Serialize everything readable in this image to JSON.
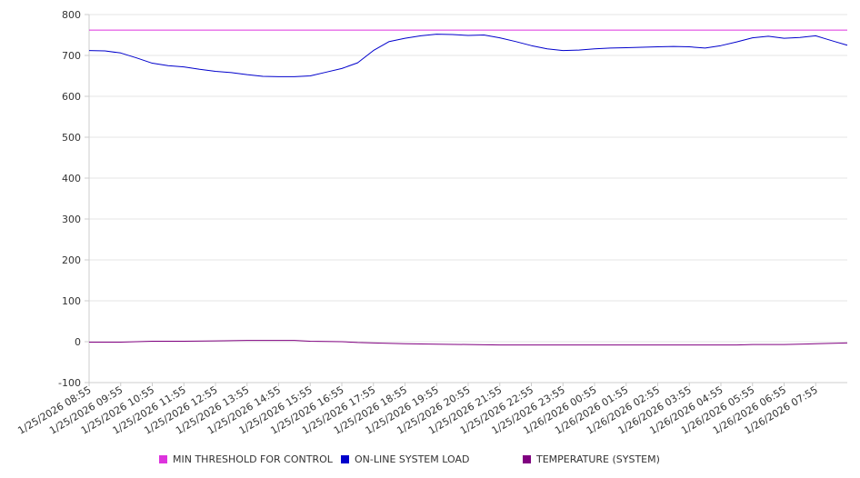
{
  "chart_data": {
    "type": "line",
    "title": "",
    "xlabel": "",
    "ylabel": "",
    "ylim": [
      -100,
      800
    ],
    "y_ticks": [
      -100,
      0,
      100,
      200,
      300,
      400,
      500,
      600,
      700,
      800
    ],
    "y_tick_labels": [
      "-100",
      "0",
      "100",
      "200",
      "300",
      "400",
      "500",
      "600",
      "700",
      "800"
    ],
    "x_tick_labels": [
      "1/25/2026 08:55",
      "1/25/2026 09:55",
      "1/25/2026 10:55",
      "1/25/2026 11:55",
      "1/25/2026 12:55",
      "1/25/2026 13:55",
      "1/25/2026 14:55",
      "1/25/2026 15:55",
      "1/25/2026 16:55",
      "1/25/2026 17:55",
      "1/25/2026 18:55",
      "1/25/2026 19:55",
      "1/25/2026 20:55",
      "1/25/2026 21:55",
      "1/25/2026 22:55",
      "1/25/2026 23:55",
      "1/26/2026 00:55",
      "1/26/2026 01:55",
      "1/26/2026 02:55",
      "1/26/2026 03:55",
      "1/26/2026 04:55",
      "1/26/2026 05:55",
      "1/26/2026 06:55",
      "1/26/2026 07:55"
    ],
    "x_range_hours": [
      0,
      24
    ],
    "grid": true,
    "legend_position": "bottom",
    "series": [
      {
        "name": "MIN THRESHOLD FOR CONTROL",
        "color": "#dd33dd",
        "points": [
          [
            0,
            762
          ],
          [
            24,
            762
          ]
        ]
      },
      {
        "name": "ON-LINE SYSTEM LOAD",
        "color": "#0000cc",
        "points": [
          [
            0,
            712
          ],
          [
            0.5,
            711
          ],
          [
            1,
            706
          ],
          [
            1.5,
            694
          ],
          [
            2,
            681
          ],
          [
            2.5,
            675
          ],
          [
            3,
            672
          ],
          [
            3.5,
            666
          ],
          [
            4,
            661
          ],
          [
            4.5,
            658
          ],
          [
            5,
            653
          ],
          [
            5.5,
            649
          ],
          [
            6,
            648
          ],
          [
            6.5,
            648
          ],
          [
            7,
            650
          ],
          [
            7.5,
            659
          ],
          [
            8,
            668
          ],
          [
            8.5,
            682
          ],
          [
            9,
            712
          ],
          [
            9.5,
            734
          ],
          [
            10,
            742
          ],
          [
            10.5,
            748
          ],
          [
            11,
            752
          ],
          [
            11.5,
            751
          ],
          [
            12,
            749
          ],
          [
            12.5,
            750
          ],
          [
            13,
            743
          ],
          [
            13.5,
            734
          ],
          [
            14,
            724
          ],
          [
            14.5,
            716
          ],
          [
            15,
            712
          ],
          [
            15.5,
            713
          ],
          [
            16,
            716
          ],
          [
            16.5,
            718
          ],
          [
            17,
            719
          ],
          [
            17.5,
            720
          ],
          [
            18,
            721
          ],
          [
            18.5,
            722
          ],
          [
            19,
            721
          ],
          [
            19.5,
            718
          ],
          [
            20,
            724
          ],
          [
            20.5,
            733
          ],
          [
            21,
            743
          ],
          [
            21.5,
            747
          ],
          [
            22,
            742
          ],
          [
            22.5,
            744
          ],
          [
            23,
            748
          ],
          [
            23.3,
            741
          ],
          [
            23.6,
            734
          ],
          [
            24,
            725
          ]
        ]
      },
      {
        "name": "TEMPERATURE (SYSTEM)",
        "color": "#800080",
        "points": [
          [
            0,
            -1
          ],
          [
            1,
            -1
          ],
          [
            2,
            1
          ],
          [
            3,
            1
          ],
          [
            4,
            2
          ],
          [
            5,
            3
          ],
          [
            6,
            3
          ],
          [
            6.5,
            3
          ],
          [
            7,
            1
          ],
          [
            8,
            0
          ],
          [
            8.5,
            -2
          ],
          [
            9,
            -3
          ],
          [
            10,
            -5
          ],
          [
            11,
            -6
          ],
          [
            12,
            -7
          ],
          [
            13,
            -8
          ],
          [
            14,
            -8
          ],
          [
            15,
            -8
          ],
          [
            16,
            -8
          ],
          [
            17,
            -8
          ],
          [
            18,
            -8
          ],
          [
            19,
            -8
          ],
          [
            20,
            -8
          ],
          [
            20.5,
            -8
          ],
          [
            21,
            -7
          ],
          [
            22,
            -7
          ],
          [
            23,
            -5
          ],
          [
            24,
            -3
          ]
        ]
      }
    ]
  }
}
